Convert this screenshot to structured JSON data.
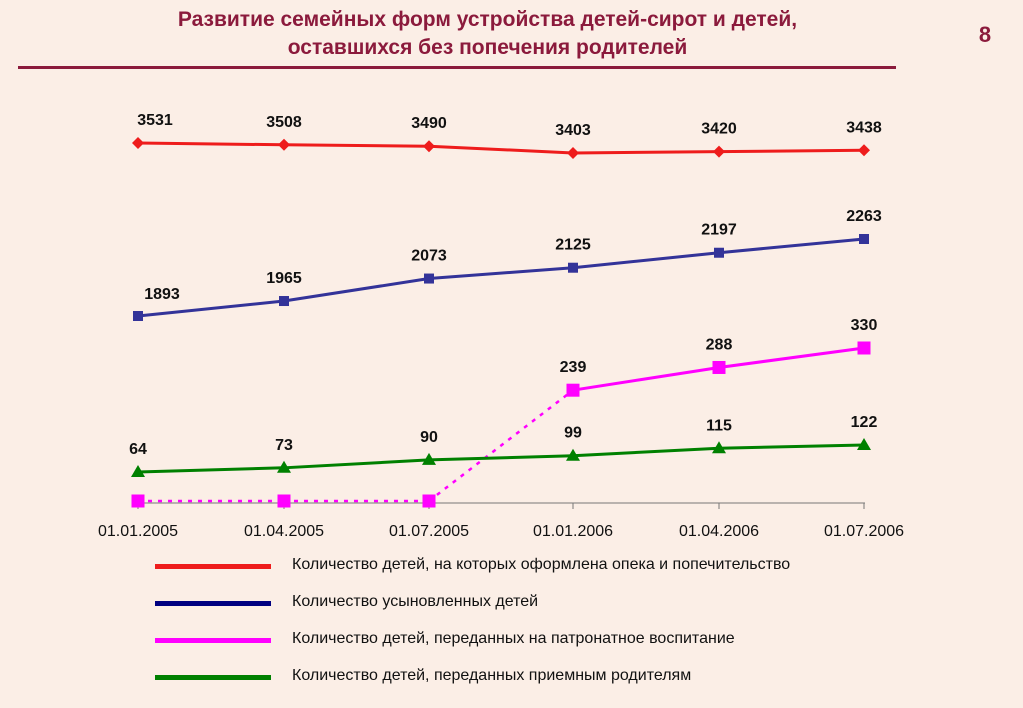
{
  "title_line1": "Развитие семейных форм устройства детей-сирот и детей,",
  "title_line2": "оставшихся без попечения родителей",
  "page_number": "8",
  "colors": {
    "title": "#8b1a3c",
    "background": "#fbeee6"
  },
  "chart_data": {
    "type": "line",
    "categories": [
      "01.01.2005",
      "01.04.2005",
      "01.07.2005",
      "01.01.2006",
      "01.04.2006",
      "01.07.2006"
    ],
    "series": [
      {
        "name": "Количество детей, на которых оформлена опека и попечительство",
        "values": [
          3531,
          3508,
          3490,
          3403,
          3420,
          3438
        ],
        "labels": [
          "3531",
          "3508",
          "3490",
          "3403",
          "3420",
          "3438"
        ],
        "color": "#ee1c1c",
        "marker": "diamond"
      },
      {
        "name": "Количество усыновленных детей",
        "values": [
          1893,
          1965,
          2073,
          2125,
          2197,
          2263
        ],
        "labels": [
          "1893",
          "1965",
          "2073",
          "2125",
          "2197",
          "2263"
        ],
        "color": "#333399",
        "legend_color": "#000080",
        "marker": "square"
      },
      {
        "name": "Количество детей, переданных на патронатное воспитание",
        "values": [
          0,
          0,
          0,
          239,
          288,
          330
        ],
        "labels": [
          "",
          "",
          "",
          "239",
          "288",
          "330"
        ],
        "color": "#ff00ff",
        "marker": "square",
        "dashed_segments": [
          0,
          1,
          2
        ]
      },
      {
        "name": "Количество детей, переданных приемным родителям",
        "values": [
          64,
          73,
          90,
          99,
          115,
          122
        ],
        "labels": [
          "64",
          "73",
          "90",
          "99",
          "115",
          "122"
        ],
        "color": "#008000",
        "marker": "triangle"
      }
    ],
    "axis": "broken",
    "grid": false,
    "legend_position": "bottom"
  }
}
